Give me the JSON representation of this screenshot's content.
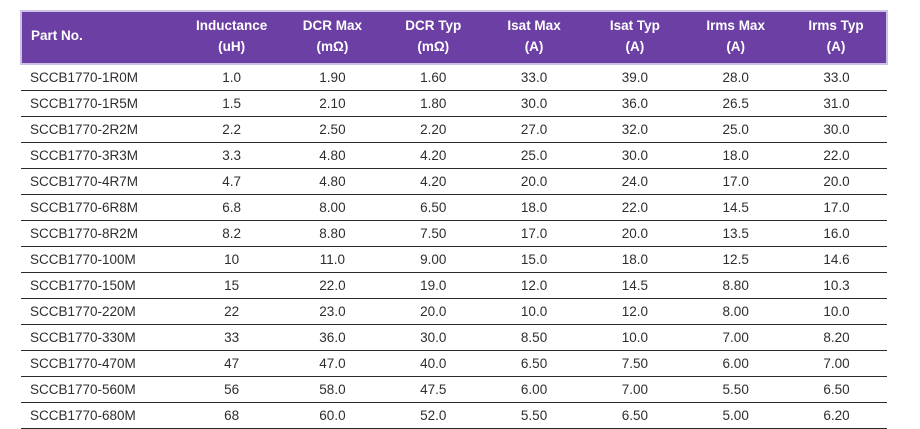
{
  "table": {
    "colors": {
      "header_bg": "#6B3FA4",
      "header_text": "#FFFFFF",
      "header_edge": "#CDC1E6",
      "row_line": "#2A2A2A",
      "body_text": "#2E2E2E"
    },
    "columns": [
      {
        "label": "Part No.",
        "unit": ""
      },
      {
        "label": "Inductance",
        "unit": "(uH)"
      },
      {
        "label": "DCR Max",
        "unit": "(mΩ)"
      },
      {
        "label": "DCR Typ",
        "unit": "(mΩ)"
      },
      {
        "label": "Isat Max",
        "unit": "(A)"
      },
      {
        "label": "Isat Typ",
        "unit": "(A)"
      },
      {
        "label": "Irms Max",
        "unit": "(A)"
      },
      {
        "label": "Irms Typ",
        "unit": "(A)"
      }
    ],
    "rows": [
      [
        "SCCB1770-1R0M",
        "1.0",
        "1.90",
        "1.60",
        "33.0",
        "39.0",
        "28.0",
        "33.0"
      ],
      [
        "SCCB1770-1R5M",
        "1.5",
        "2.10",
        "1.80",
        "30.0",
        "36.0",
        "26.5",
        "31.0"
      ],
      [
        "SCCB1770-2R2M",
        "2.2",
        "2.50",
        "2.20",
        "27.0",
        "32.0",
        "25.0",
        "30.0"
      ],
      [
        "SCCB1770-3R3M",
        "3.3",
        "4.80",
        "4.20",
        "25.0",
        "30.0",
        "18.0",
        "22.0"
      ],
      [
        "SCCB1770-4R7M",
        "4.7",
        "4.80",
        "4.20",
        "20.0",
        "24.0",
        "17.0",
        "20.0"
      ],
      [
        "SCCB1770-6R8M",
        "6.8",
        "8.00",
        "6.50",
        "18.0",
        "22.0",
        "14.5",
        "17.0"
      ],
      [
        "SCCB1770-8R2M",
        "8.2",
        "8.80",
        "7.50",
        "17.0",
        "20.0",
        "13.5",
        "16.0"
      ],
      [
        "SCCB1770-100M",
        "10",
        "11.0",
        "9.00",
        "15.0",
        "18.0",
        "12.5",
        "14.6"
      ],
      [
        "SCCB1770-150M",
        "15",
        "22.0",
        "19.0",
        "12.0",
        "14.5",
        "8.80",
        "10.3"
      ],
      [
        "SCCB1770-220M",
        "22",
        "23.0",
        "20.0",
        "10.0",
        "12.0",
        "8.00",
        "10.0"
      ],
      [
        "SCCB1770-330M",
        "33",
        "36.0",
        "30.0",
        "8.50",
        "10.0",
        "7.00",
        "8.20"
      ],
      [
        "SCCB1770-470M",
        "47",
        "47.0",
        "40.0",
        "6.50",
        "7.50",
        "6.00",
        "7.00"
      ],
      [
        "SCCB1770-560M",
        "56",
        "58.0",
        "47.5",
        "6.00",
        "7.00",
        "5.50",
        "6.50"
      ],
      [
        "SCCB1770-680M",
        "68",
        "60.0",
        "52.0",
        "5.50",
        "6.50",
        "5.00",
        "6.20"
      ]
    ]
  }
}
